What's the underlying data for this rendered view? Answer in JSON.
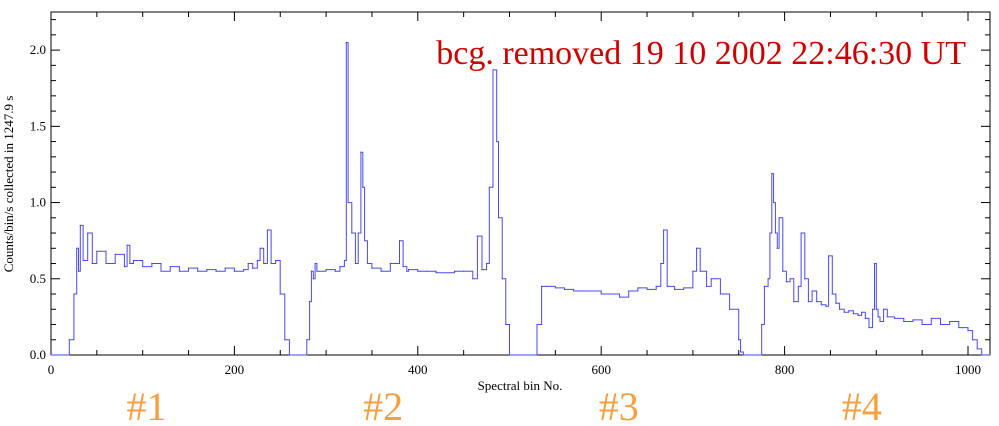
{
  "chart_data": {
    "type": "line",
    "title": "",
    "annotation": "bcg. removed  19 10 2002   22:46:30 UT",
    "xlabel": "Spectral bin No.",
    "ylabel": "Counts/bin/s collected in  1247.9 s",
    "xlim": [
      0,
      1024
    ],
    "ylim": [
      0,
      2.25
    ],
    "x_ticks": [
      0,
      200,
      400,
      600,
      800,
      1000
    ],
    "y_ticks": [
      0.0,
      0.5,
      1.0,
      1.5,
      2.0
    ],
    "y_tick_labels": [
      "0.0",
      "0.5",
      "1.0",
      "1.5",
      "2.0"
    ],
    "grid": false,
    "region_labels": [
      {
        "label": "#1",
        "x": 150
      },
      {
        "label": "#2",
        "x": 408
      },
      {
        "label": "#3",
        "x": 665
      },
      {
        "label": "#4",
        "x": 930
      }
    ],
    "series": [
      {
        "color": "#4a4ae8",
        "x": [
          0,
          12,
          20,
          25,
          28,
          30,
          32,
          35,
          40,
          45,
          50,
          60,
          70,
          80,
          83,
          86,
          90,
          100,
          110,
          120,
          130,
          140,
          150,
          160,
          170,
          180,
          190,
          200,
          210,
          215,
          220,
          225,
          228,
          232,
          236,
          240,
          245,
          250,
          255,
          260,
          264,
          268,
          272,
          276,
          279,
          282,
          284,
          286,
          288,
          290,
          300,
          310,
          315,
          320,
          322,
          324,
          328,
          332,
          335,
          338,
          340,
          342,
          345,
          350,
          360,
          370,
          380,
          384,
          388,
          390,
          400,
          410,
          420,
          440,
          450,
          460,
          465,
          470,
          475,
          478,
          482,
          486,
          488,
          492,
          496,
          500,
          505,
          510,
          520,
          525,
          530,
          535,
          540,
          550,
          560,
          570,
          580,
          600,
          620,
          630,
          640,
          650,
          660,
          665,
          668,
          672,
          680,
          690,
          700,
          704,
          708,
          715,
          720,
          730,
          740,
          750,
          752,
          755,
          760,
          765,
          770,
          775,
          778,
          782,
          784,
          786,
          788,
          790,
          792,
          794,
          798,
          802,
          806,
          810,
          815,
          818,
          822,
          826,
          830,
          835,
          840,
          845,
          848,
          852,
          856,
          860,
          865,
          870,
          875,
          880,
          884,
          888,
          892,
          896,
          898,
          900,
          902,
          904,
          908,
          912,
          920,
          930,
          940,
          950,
          960,
          970,
          980,
          990,
          1000,
          1005,
          1010,
          1015,
          1020,
          1024
        ],
        "y": [
          0.0,
          0.0,
          0.1,
          0.4,
          0.7,
          0.55,
          0.85,
          0.62,
          0.8,
          0.6,
          0.68,
          0.6,
          0.66,
          0.58,
          0.72,
          0.6,
          0.62,
          0.58,
          0.6,
          0.55,
          0.58,
          0.55,
          0.57,
          0.55,
          0.56,
          0.55,
          0.57,
          0.55,
          0.56,
          0.6,
          0.57,
          0.62,
          0.7,
          0.6,
          0.82,
          0.6,
          0.62,
          0.4,
          0.1,
          0.0,
          0.0,
          0.0,
          0.0,
          0.0,
          0.1,
          0.35,
          0.55,
          0.5,
          0.6,
          0.55,
          0.56,
          0.55,
          0.58,
          0.62,
          2.05,
          1.0,
          0.8,
          0.6,
          0.8,
          1.33,
          1.1,
          0.75,
          0.6,
          0.57,
          0.55,
          0.6,
          0.75,
          0.58,
          0.55,
          0.56,
          0.55,
          0.55,
          0.54,
          0.55,
          0.55,
          0.5,
          0.78,
          0.56,
          0.6,
          1.1,
          1.87,
          1.4,
          0.9,
          0.5,
          0.2,
          0.0,
          0.0,
          0.0,
          0.0,
          0.0,
          0.2,
          0.45,
          0.45,
          0.44,
          0.43,
          0.42,
          0.42,
          0.4,
          0.38,
          0.42,
          0.44,
          0.43,
          0.45,
          0.6,
          0.82,
          0.45,
          0.43,
          0.44,
          0.55,
          0.7,
          0.55,
          0.45,
          0.5,
          0.4,
          0.3,
          0.1,
          0.02,
          0.0,
          0.0,
          0.0,
          0.0,
          0.2,
          0.45,
          0.5,
          0.8,
          1.19,
          1.0,
          0.8,
          0.7,
          0.9,
          0.55,
          0.48,
          0.5,
          0.35,
          0.45,
          0.8,
          0.5,
          0.35,
          0.42,
          0.35,
          0.33,
          0.32,
          0.65,
          0.4,
          0.34,
          0.3,
          0.28,
          0.29,
          0.27,
          0.26,
          0.28,
          0.24,
          0.18,
          0.3,
          0.6,
          0.3,
          0.25,
          0.22,
          0.3,
          0.25,
          0.24,
          0.22,
          0.23,
          0.2,
          0.24,
          0.2,
          0.22,
          0.18,
          0.16,
          0.1,
          0.04,
          0.0,
          0.0,
          0.0
        ]
      }
    ]
  },
  "colors": {
    "line": "#4a4ae8",
    "annotation": "#cc0000",
    "region_label": "#f5a040",
    "axis": "#000000"
  }
}
